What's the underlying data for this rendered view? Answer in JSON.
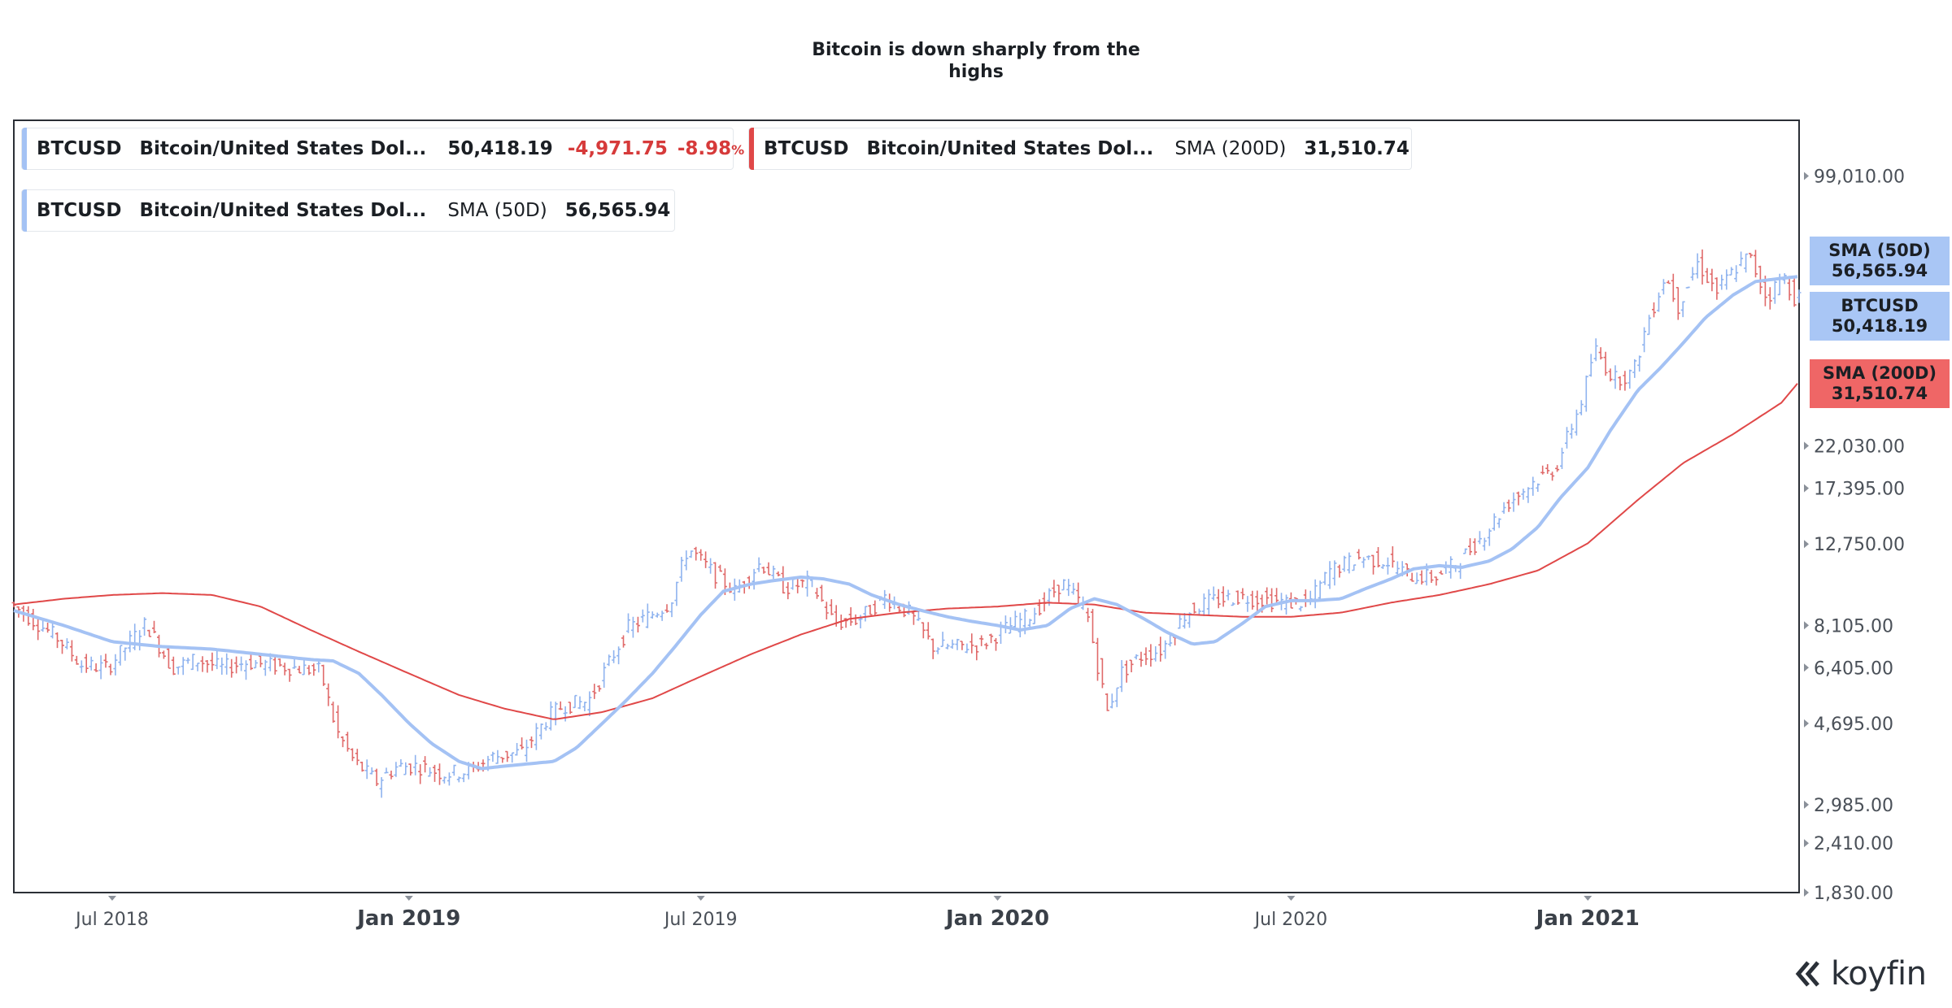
{
  "title": "Bitcoin is down sharply from the highs",
  "legend": [
    {
      "symbol": "BTCUSD",
      "description": "Bitcoin/United States Dol...",
      "value": "50,418.19",
      "change": "-4,971.75",
      "change_pct": "-8.98",
      "pct_sign": "%",
      "color": "#a4c2f4"
    },
    {
      "symbol": "BTCUSD",
      "description": "Bitcoin/United States Dol...",
      "indicator": "SMA (200D)",
      "value": "31,510.74",
      "color": "#e04848"
    },
    {
      "symbol": "BTCUSD",
      "description": "Bitcoin/United States Dol...",
      "indicator": "SMA (50D)",
      "value": "56,565.94",
      "color": "#a4c2f4"
    }
  ],
  "price_tags": [
    {
      "label": "SMA (50D)",
      "value": "56,565.94",
      "color": "#a9c6f5"
    },
    {
      "label": "BTCUSD",
      "value": "50,418.19",
      "color": "#a9c6f5"
    },
    {
      "label": "SMA (200D)",
      "value": "31,510.74",
      "color": "#ef6666"
    }
  ],
  "watermark": "koyfin",
  "chart_data": {
    "type": "line",
    "y_scale": "log",
    "ylim": [
      1830,
      135000
    ],
    "xlim": [
      "2018-05-01",
      "2021-05-12"
    ],
    "y_ticks": [
      1830,
      2410,
      2985,
      4695,
      6405,
      8105,
      12750,
      17395,
      22030,
      99010
    ],
    "y_tick_labels": [
      "1,830.00",
      "2,410.00",
      "2,985.00",
      "4,695.00",
      "6,405.00",
      "8,105.00",
      "12,750.00",
      "17,395.00",
      "22,030.00",
      "99,010.00"
    ],
    "x_ticks": [
      {
        "label": "Jul 2018",
        "date": "2018-07-01",
        "major": false
      },
      {
        "label": "Jan 2019",
        "date": "2019-01-01",
        "major": true
      },
      {
        "label": "Jul 2019",
        "date": "2019-07-01",
        "major": false
      },
      {
        "label": "Jan 2020",
        "date": "2020-01-01",
        "major": true
      },
      {
        "label": "Jul 2020",
        "date": "2020-07-01",
        "major": false
      },
      {
        "label": "Jan 2021",
        "date": "2021-01-01",
        "major": true
      }
    ],
    "grid": false,
    "series": [
      {
        "name": "BTCUSD",
        "style": "ohlc",
        "color_up": "#8fb3ef",
        "color_down": "#e06a6a",
        "x": [
          "2018-05-01",
          "2018-05-15",
          "2018-06-01",
          "2018-06-15",
          "2018-07-01",
          "2018-07-15",
          "2018-07-25",
          "2018-08-10",
          "2018-08-25",
          "2018-09-10",
          "2018-09-25",
          "2018-10-10",
          "2018-10-25",
          "2018-11-10",
          "2018-11-20",
          "2018-12-01",
          "2018-12-15",
          "2018-12-28",
          "2019-01-10",
          "2019-01-25",
          "2019-02-10",
          "2019-02-25",
          "2019-03-15",
          "2019-04-01",
          "2019-04-10",
          "2019-04-25",
          "2019-05-10",
          "2019-05-20",
          "2019-06-01",
          "2019-06-15",
          "2019-06-26",
          "2019-07-10",
          "2019-07-25",
          "2019-08-10",
          "2019-08-25",
          "2019-09-10",
          "2019-09-25",
          "2019-10-10",
          "2019-10-26",
          "2019-11-10",
          "2019-11-25",
          "2019-12-10",
          "2019-12-25",
          "2020-01-10",
          "2020-01-25",
          "2020-02-13",
          "2020-02-28",
          "2020-03-12",
          "2020-03-20",
          "2020-04-01",
          "2020-04-15",
          "2020-04-30",
          "2020-05-15",
          "2020-06-01",
          "2020-06-15",
          "2020-07-01",
          "2020-07-15",
          "2020-07-28",
          "2020-08-15",
          "2020-09-01",
          "2020-09-15",
          "2020-10-01",
          "2020-10-15",
          "2020-11-01",
          "2020-11-15",
          "2020-12-01",
          "2020-12-15",
          "2021-01-01",
          "2021-01-08",
          "2021-01-20",
          "2021-02-01",
          "2021-02-10",
          "2021-02-21",
          "2021-03-01",
          "2021-03-13",
          "2021-03-25",
          "2021-04-05",
          "2021-04-14",
          "2021-04-25",
          "2021-05-05",
          "2021-05-12"
        ],
        "values": [
          9200,
          8400,
          7500,
          6500,
          6400,
          7400,
          8200,
          6400,
          6700,
          6400,
          6600,
          6500,
          6400,
          6300,
          4500,
          3800,
          3400,
          3700,
          3700,
          3550,
          3600,
          3900,
          4000,
          4900,
          5200,
          5300,
          6800,
          8000,
          8500,
          9200,
          12500,
          11000,
          9800,
          11500,
          10000,
          10300,
          8200,
          8400,
          9500,
          8700,
          7200,
          7200,
          7300,
          8000,
          8600,
          10300,
          8800,
          5000,
          6200,
          6800,
          7100,
          8700,
          9300,
          9500,
          9400,
          9200,
          9200,
          11000,
          11800,
          11600,
          10700,
          10600,
          11500,
          13500,
          16000,
          18000,
          19500,
          29000,
          38000,
          32000,
          33000,
          44000,
          57000,
          48000,
          61000,
          52000,
          59000,
          63500,
          50000,
          57000,
          50418.19
        ]
      },
      {
        "name": "SMA (50D)",
        "style": "line",
        "color": "#a4c2f4",
        "x": [
          "2018-05-01",
          "2018-06-01",
          "2018-07-01",
          "2018-08-01",
          "2018-09-01",
          "2018-10-01",
          "2018-11-01",
          "2018-11-15",
          "2018-12-01",
          "2018-12-15",
          "2019-01-01",
          "2019-01-15",
          "2019-02-01",
          "2019-02-15",
          "2019-03-01",
          "2019-04-01",
          "2019-04-15",
          "2019-05-01",
          "2019-05-15",
          "2019-06-01",
          "2019-06-15",
          "2019-07-01",
          "2019-07-15",
          "2019-08-01",
          "2019-08-15",
          "2019-09-01",
          "2019-09-15",
          "2019-10-01",
          "2019-10-15",
          "2019-11-01",
          "2019-11-15",
          "2019-12-01",
          "2019-12-15",
          "2020-01-01",
          "2020-01-15",
          "2020-02-01",
          "2020-02-15",
          "2020-03-01",
          "2020-03-15",
          "2020-04-01",
          "2020-04-15",
          "2020-05-01",
          "2020-05-15",
          "2020-06-01",
          "2020-06-15",
          "2020-07-01",
          "2020-07-15",
          "2020-08-01",
          "2020-08-15",
          "2020-09-01",
          "2020-09-15",
          "2020-10-01",
          "2020-10-15",
          "2020-11-01",
          "2020-11-15",
          "2020-12-01",
          "2020-12-15",
          "2021-01-01",
          "2021-01-15",
          "2021-02-01",
          "2021-02-15",
          "2021-03-01",
          "2021-03-15",
          "2021-04-01",
          "2021-04-15",
          "2021-05-01",
          "2021-05-12"
        ],
        "values": [
          8800,
          8100,
          7400,
          7200,
          7100,
          6900,
          6700,
          6650,
          6200,
          5500,
          4700,
          4200,
          3800,
          3650,
          3700,
          3800,
          4100,
          4700,
          5300,
          6200,
          7200,
          8600,
          9800,
          10200,
          10400,
          10600,
          10500,
          10200,
          9600,
          9100,
          8800,
          8500,
          8300,
          8100,
          7900,
          8100,
          8900,
          9400,
          9100,
          8400,
          7800,
          7300,
          7400,
          8200,
          9000,
          9300,
          9300,
          9400,
          9900,
          10500,
          11100,
          11300,
          11200,
          11600,
          12400,
          14000,
          16500,
          19500,
          24000,
          30000,
          34000,
          39000,
          45000,
          51000,
          55000,
          56000,
          56565.94
        ]
      },
      {
        "name": "SMA (200D)",
        "style": "line",
        "color": "#e04848",
        "x": [
          "2018-05-01",
          "2018-06-01",
          "2018-07-01",
          "2018-08-01",
          "2018-09-01",
          "2018-10-01",
          "2018-11-01",
          "2018-12-01",
          "2019-01-01",
          "2019-02-01",
          "2019-03-01",
          "2019-04-01",
          "2019-05-01",
          "2019-06-01",
          "2019-07-01",
          "2019-08-01",
          "2019-09-01",
          "2019-10-01",
          "2019-11-01",
          "2019-12-01",
          "2020-01-01",
          "2020-02-01",
          "2020-03-01",
          "2020-04-01",
          "2020-05-01",
          "2020-06-01",
          "2020-07-01",
          "2020-08-01",
          "2020-09-01",
          "2020-10-01",
          "2020-11-01",
          "2020-12-01",
          "2021-01-01",
          "2021-02-01",
          "2021-03-01",
          "2021-04-01",
          "2021-05-01",
          "2021-05-12"
        ],
        "values": [
          9100,
          9400,
          9600,
          9700,
          9600,
          9000,
          7900,
          7000,
          6200,
          5500,
          5100,
          4800,
          5000,
          5400,
          6100,
          6900,
          7700,
          8400,
          8700,
          8900,
          9000,
          9200,
          9100,
          8700,
          8600,
          8500,
          8500,
          8700,
          9200,
          9600,
          10200,
          11000,
          12800,
          16300,
          20000,
          23500,
          28000,
          31510.74
        ]
      }
    ]
  }
}
